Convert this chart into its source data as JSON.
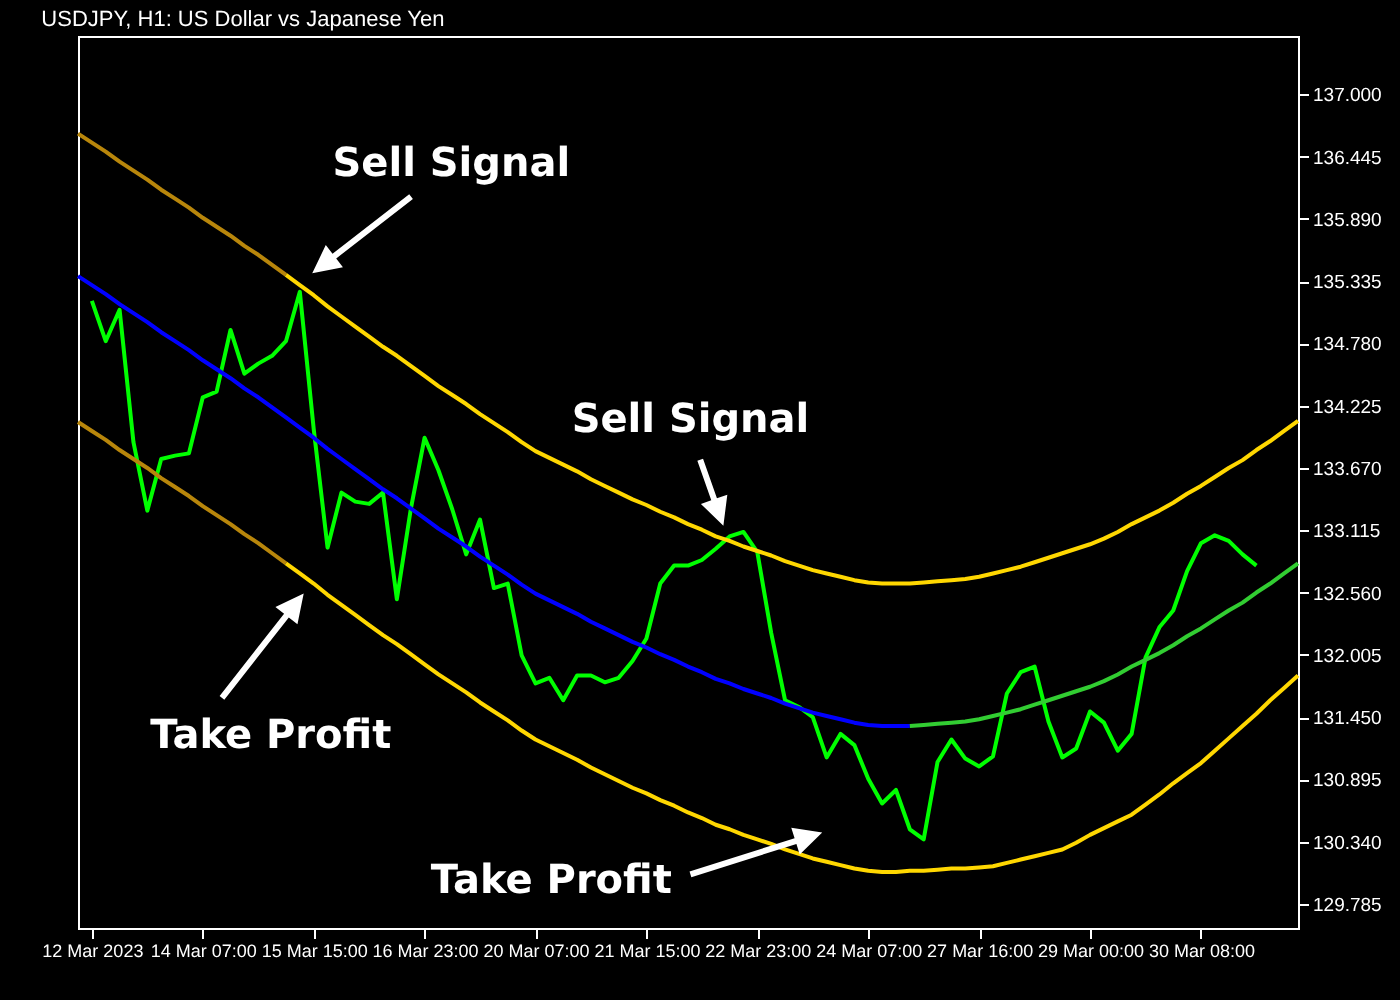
{
  "chart_data": {
    "type": "line",
    "title": "USDJPY, H1:  US Dollar vs Japanese Yen",
    "grid": false,
    "marker": "none",
    "line_style": "solid",
    "categories": [
      null,
      "12 Mar 2023",
      null,
      null,
      null,
      null,
      null,
      null,
      null,
      "14 Mar 07:00",
      null,
      null,
      null,
      null,
      null,
      null,
      null,
      "15 Mar 15:00",
      null,
      null,
      null,
      null,
      null,
      null,
      null,
      "16 Mar 23:00",
      null,
      null,
      null,
      null,
      null,
      null,
      null,
      "20 Mar 07:00",
      null,
      null,
      null,
      null,
      null,
      null,
      null,
      "21 Mar 15:00",
      null,
      null,
      null,
      null,
      null,
      null,
      null,
      "22 Mar 23:00",
      null,
      null,
      null,
      null,
      null,
      null,
      null,
      "24 Mar 07:00",
      null,
      null,
      null,
      null,
      null,
      null,
      null,
      "27 Mar 16:00",
      null,
      null,
      null,
      null,
      null,
      null,
      null,
      "29 Mar 00:00",
      null,
      null,
      null,
      null,
      null,
      null,
      null,
      "30 Mar 08:00",
      null,
      null,
      null,
      null,
      null,
      null,
      null
    ],
    "ylim": [
      129.57,
      137.52
    ],
    "yticks": [
      {
        "value": 137,
        "label": "137.000"
      },
      {
        "value": 136.445,
        "label": "136.445"
      },
      {
        "value": 135.89,
        "label": "135.890"
      },
      {
        "value": 135.335,
        "label": "135.335"
      },
      {
        "value": 134.78,
        "label": "134.780"
      },
      {
        "value": 134.225,
        "label": "134.225"
      },
      {
        "value": 133.67,
        "label": "133.670"
      },
      {
        "value": 133.115,
        "label": "133.115"
      },
      {
        "value": 132.56,
        "label": "132.560"
      },
      {
        "value": 132.005,
        "label": "132.005"
      },
      {
        "value": 131.45,
        "label": "131.450"
      },
      {
        "value": 130.895,
        "label": "130.895"
      },
      {
        "value": 130.34,
        "label": "130.340"
      },
      {
        "value": 129.785,
        "label": "129.785"
      }
    ],
    "series": [
      {
        "color": "#00ff00",
        "values": [
          null,
          135.16,
          134.8,
          135.08,
          133.9,
          133.29,
          133.75,
          133.78,
          133.8,
          134.3,
          134.35,
          134.9,
          134.51,
          134.6,
          134.67,
          134.8,
          135.24,
          134.02,
          132.96,
          133.45,
          133.37,
          133.35,
          133.45,
          132.5,
          133.3,
          133.94,
          133.65,
          133.3,
          132.9,
          133.21,
          132.6,
          132.64,
          132.0,
          131.75,
          131.8,
          131.6,
          131.82,
          131.82,
          131.76,
          131.8,
          131.95,
          132.15,
          132.64,
          132.8,
          132.8,
          132.85,
          132.95,
          133.06,
          133.1,
          132.92,
          132.2,
          131.6,
          131.54,
          131.45,
          131.09,
          131.3,
          131.2,
          130.9,
          130.68,
          130.8,
          130.45,
          130.36,
          131.05,
          131.25,
          131.08,
          131.01,
          131.1,
          131.66,
          131.85,
          131.9,
          131.41,
          131.09,
          131.17,
          131.5,
          131.4,
          131.15,
          131.3,
          131.98,
          132.25,
          132.4,
          132.75,
          133.0,
          133.07,
          133.02,
          132.9,
          132.8,
          null,
          null,
          null
        ]
      },
      {
        "color": "#b8860b",
        "values": [
          136.65,
          136.57,
          136.49,
          136.4,
          136.32,
          136.24,
          136.15,
          136.07,
          135.99,
          135.9,
          135.82,
          135.74,
          135.65,
          135.57,
          135.48,
          135.39,
          null,
          null,
          null,
          null,
          null,
          null,
          null,
          null,
          null,
          null,
          null,
          null,
          null,
          null,
          null,
          null,
          null,
          null,
          null,
          null,
          null,
          null,
          null,
          null,
          null,
          null,
          null,
          null,
          null,
          null,
          null,
          null,
          null,
          null,
          null,
          null,
          null,
          null,
          null,
          null,
          null,
          null,
          null,
          null,
          null,
          null,
          null,
          null,
          null,
          null,
          null,
          null,
          null,
          null,
          null,
          null,
          null,
          null,
          null,
          null,
          null,
          null,
          null,
          null,
          null,
          null,
          null,
          null,
          null,
          null,
          null,
          null,
          null
        ]
      },
      {
        "color": "#ffd700",
        "values": [
          null,
          null,
          null,
          null,
          null,
          null,
          null,
          null,
          null,
          null,
          null,
          null,
          null,
          null,
          null,
          135.39,
          135.3,
          135.21,
          135.11,
          135.02,
          134.93,
          134.84,
          134.75,
          134.67,
          134.58,
          134.49,
          134.4,
          134.32,
          134.24,
          134.15,
          134.07,
          133.99,
          133.9,
          133.82,
          133.76,
          133.7,
          133.64,
          133.57,
          133.51,
          133.45,
          133.39,
          133.34,
          133.28,
          133.23,
          133.17,
          133.12,
          133.06,
          133.02,
          132.97,
          132.93,
          132.89,
          132.84,
          132.8,
          132.76,
          132.73,
          132.7,
          132.67,
          132.65,
          132.64,
          132.64,
          132.64,
          132.65,
          132.66,
          132.67,
          132.68,
          132.7,
          132.73,
          132.76,
          132.79,
          132.83,
          132.87,
          132.91,
          132.95,
          132.99,
          133.04,
          133.1,
          133.17,
          133.23,
          133.29,
          133.36,
          133.44,
          133.51,
          133.59,
          133.67,
          133.74,
          133.83,
          133.91,
          134.0,
          134.09
        ]
      },
      {
        "color": "#b8860b",
        "values": [
          134.08,
          134.0,
          133.92,
          133.83,
          133.75,
          133.67,
          133.58,
          133.5,
          133.42,
          133.33,
          133.25,
          133.17,
          133.08,
          133.0,
          132.91,
          132.82,
          null,
          null,
          null,
          null,
          null,
          null,
          null,
          null,
          null,
          null,
          null,
          null,
          null,
          null,
          null,
          null,
          null,
          null,
          null,
          null,
          null,
          null,
          null,
          null,
          null,
          null,
          null,
          null,
          null,
          null,
          null,
          null,
          null,
          null,
          null,
          null,
          null,
          null,
          null,
          null,
          null,
          null,
          null,
          null,
          null,
          null,
          null,
          null,
          null,
          null,
          null,
          null,
          null,
          null,
          null,
          null,
          null,
          null,
          null,
          null,
          null,
          null,
          null,
          null,
          null,
          null,
          null,
          null,
          null,
          null,
          null,
          null,
          null
        ]
      },
      {
        "color": "#ffd700",
        "values": [
          null,
          null,
          null,
          null,
          null,
          null,
          null,
          null,
          null,
          null,
          null,
          null,
          null,
          null,
          null,
          132.82,
          132.73,
          132.64,
          132.54,
          132.45,
          132.36,
          132.27,
          132.18,
          132.1,
          132.01,
          131.92,
          131.83,
          131.75,
          131.67,
          131.58,
          131.5,
          131.42,
          131.33,
          131.25,
          131.19,
          131.13,
          131.07,
          131.0,
          130.94,
          130.88,
          130.82,
          130.77,
          130.71,
          130.66,
          130.6,
          130.55,
          130.49,
          130.45,
          130.4,
          130.36,
          130.32,
          130.27,
          130.23,
          130.19,
          130.16,
          130.13,
          130.1,
          130.08,
          130.07,
          130.07,
          130.08,
          130.08,
          130.09,
          130.1,
          130.1,
          130.11,
          130.12,
          130.15,
          130.18,
          130.21,
          130.24,
          130.27,
          130.33,
          130.4,
          130.46,
          130.52,
          130.58,
          130.67,
          130.76,
          130.86,
          130.95,
          131.04,
          131.15,
          131.26,
          131.37,
          131.48,
          131.6,
          131.71,
          131.82
        ]
      },
      {
        "color": "#0000ff",
        "values": [
          135.38,
          135.3,
          135.22,
          135.13,
          135.05,
          134.97,
          134.88,
          134.8,
          134.72,
          134.63,
          134.55,
          134.47,
          134.38,
          134.3,
          134.21,
          134.12,
          134.03,
          133.94,
          133.84,
          133.75,
          133.66,
          133.57,
          133.48,
          133.4,
          133.31,
          133.22,
          133.13,
          133.05,
          132.97,
          132.88,
          132.8,
          132.72,
          132.63,
          132.55,
          132.49,
          132.43,
          132.37,
          132.3,
          132.24,
          132.18,
          132.12,
          132.07,
          132.01,
          131.96,
          131.9,
          131.85,
          131.79,
          131.75,
          131.7,
          131.66,
          131.62,
          131.57,
          131.53,
          131.49,
          131.46,
          131.43,
          131.4,
          131.38,
          131.37,
          131.37,
          131.37,
          null,
          null,
          null,
          null,
          null,
          null,
          null,
          null,
          null,
          null,
          null,
          null,
          null,
          null,
          null,
          null,
          null,
          null,
          null,
          null,
          null,
          null,
          null,
          null,
          null,
          null,
          null,
          null
        ]
      },
      {
        "color": "#32cd32",
        "values": [
          null,
          null,
          null,
          null,
          null,
          null,
          null,
          null,
          null,
          null,
          null,
          null,
          null,
          null,
          null,
          null,
          null,
          null,
          null,
          null,
          null,
          null,
          null,
          null,
          null,
          null,
          null,
          null,
          null,
          null,
          null,
          null,
          null,
          null,
          null,
          null,
          null,
          null,
          null,
          null,
          null,
          null,
          null,
          null,
          null,
          null,
          null,
          null,
          null,
          null,
          null,
          null,
          null,
          null,
          null,
          null,
          null,
          null,
          null,
          null,
          131.37,
          131.38,
          131.39,
          131.4,
          131.41,
          131.43,
          131.46,
          131.49,
          131.52,
          131.56,
          131.6,
          131.64,
          131.68,
          131.72,
          131.77,
          131.83,
          131.9,
          131.96,
          132.02,
          132.09,
          132.17,
          132.24,
          132.32,
          132.4,
          132.47,
          132.56,
          132.64,
          132.73,
          132.82
        ]
      }
    ],
    "annotations": [
      "Sell Signal",
      "Sell Signal",
      "Take Profit",
      "Take Profit"
    ]
  }
}
